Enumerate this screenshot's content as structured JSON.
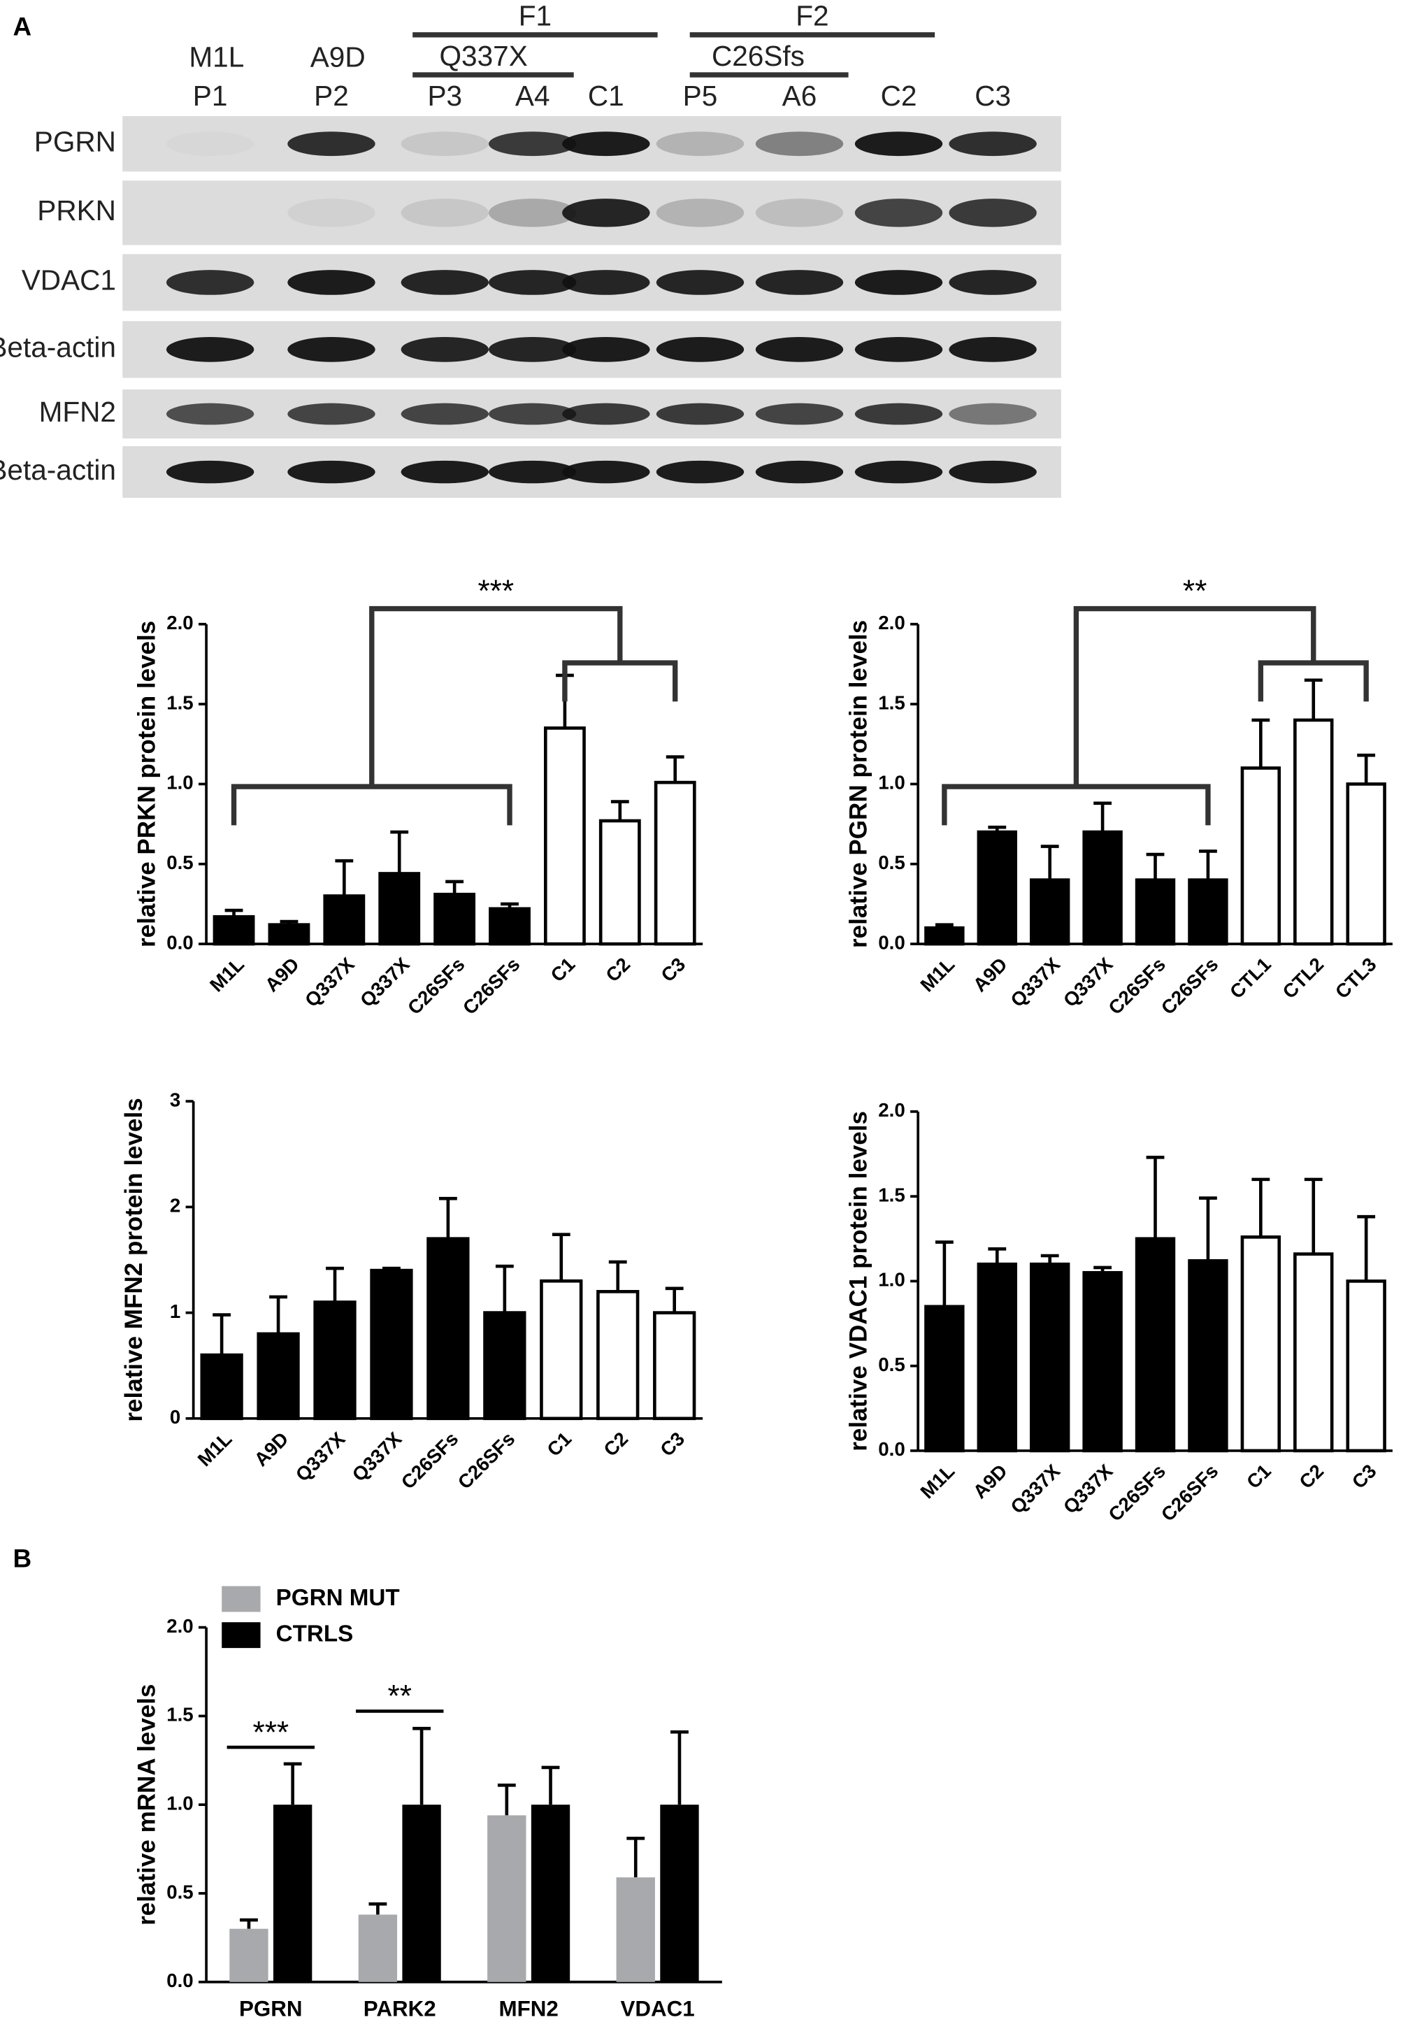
{
  "blot": {
    "panel": "A",
    "families": [
      {
        "label": "F1",
        "mutation": "Q337X"
      },
      {
        "label": "F2",
        "mutation": "C26Sfs"
      }
    ],
    "lanes_top": [
      "M1L",
      "A9D"
    ],
    "lanes": [
      "P1",
      "P2",
      "P3",
      "A4",
      "C1",
      "P5",
      "A6",
      "C2",
      "C3"
    ],
    "rows": [
      "PGRN",
      "PRKN",
      "VDAC1",
      "Beta-actin",
      "MFN2",
      "Beta-actin"
    ]
  },
  "chart_data": [
    {
      "type": "bar",
      "ylabel": "relative PRKN protein levels",
      "annotation": "***",
      "categories": [
        "M1L",
        "A9D",
        "Q337X",
        "Q337X",
        "C26SFs",
        "C26SFs",
        "C1",
        "C2",
        "C3"
      ],
      "series": [
        {
          "values": [
            0.17,
            0.12,
            0.3,
            0.44,
            0.31,
            0.22,
            1.35,
            0.77,
            1.01
          ],
          "errors": [
            0.04,
            0.02,
            0.22,
            0.26,
            0.08,
            0.03,
            0.33,
            0.12,
            0.16
          ],
          "colors": [
            "#000000",
            "#000000",
            "#000000",
            "#000000",
            "#000000",
            "#000000",
            "#ffffff",
            "#ffffff",
            "#ffffff"
          ]
        }
      ],
      "ylim": [
        0,
        2
      ],
      "yticks": [
        {
          "value": 0,
          "label": "0.0"
        },
        {
          "value": 0.5,
          "label": "0.5"
        },
        {
          "value": 1,
          "label": "1.0"
        },
        {
          "value": 1.5,
          "label": "1.5"
        },
        {
          "value": 2,
          "label": "2.0"
        }
      ]
    },
    {
      "type": "bar",
      "ylabel": "relative PGRN protein levels",
      "annotation": "**",
      "categories": [
        "M1L",
        "A9D",
        "Q337X",
        "Q337X",
        "C26SFs",
        "C26SFs",
        "CTL1",
        "CTL2",
        "CTL3"
      ],
      "series": [
        {
          "values": [
            0.1,
            0.7,
            0.4,
            0.7,
            0.4,
            0.4,
            1.1,
            1.4,
            1.0
          ],
          "errors": [
            0.02,
            0.03,
            0.21,
            0.18,
            0.16,
            0.18,
            0.3,
            0.25,
            0.18
          ],
          "colors": [
            "#000000",
            "#000000",
            "#000000",
            "#000000",
            "#000000",
            "#000000",
            "#ffffff",
            "#ffffff",
            "#ffffff"
          ]
        }
      ],
      "ylim": [
        0,
        2
      ],
      "yticks": [
        {
          "value": 0,
          "label": "0.0"
        },
        {
          "value": 0.5,
          "label": "0.5"
        },
        {
          "value": 1,
          "label": "1.0"
        },
        {
          "value": 1.5,
          "label": "1.5"
        },
        {
          "value": 2,
          "label": "2.0"
        }
      ]
    },
    {
      "type": "bar",
      "ylabel": "relative MFN2 protein levels",
      "categories": [
        "M1L",
        "A9D",
        "Q337X",
        "Q337X",
        "C26SFs",
        "C26SFs",
        "C1",
        "C2",
        "C3"
      ],
      "series": [
        {
          "values": [
            0.6,
            0.8,
            1.1,
            1.4,
            1.7,
            1.0,
            1.3,
            1.2,
            1.0
          ],
          "errors": [
            0.38,
            0.35,
            0.32,
            0.02,
            0.38,
            0.44,
            0.44,
            0.28,
            0.23
          ],
          "colors": [
            "#000000",
            "#000000",
            "#000000",
            "#000000",
            "#000000",
            "#000000",
            "#ffffff",
            "#ffffff",
            "#ffffff"
          ]
        }
      ],
      "ylim": [
        0,
        3
      ],
      "yticks": [
        0,
        1,
        2,
        3
      ]
    },
    {
      "type": "bar",
      "ylabel": "relative VDAC1 protein levels",
      "categories": [
        "M1L",
        "A9D",
        "Q337X",
        "Q337X",
        "C26SFs",
        "C26SFs",
        "C1",
        "C2",
        "C3"
      ],
      "series": [
        {
          "values": [
            0.85,
            1.1,
            1.1,
            1.05,
            1.25,
            1.12,
            1.26,
            1.16,
            1.0
          ],
          "errors": [
            0.38,
            0.09,
            0.05,
            0.03,
            0.48,
            0.37,
            0.34,
            0.44,
            0.38
          ],
          "colors": [
            "#000000",
            "#000000",
            "#000000",
            "#000000",
            "#000000",
            "#000000",
            "#ffffff",
            "#ffffff",
            "#ffffff"
          ]
        }
      ],
      "ylim": [
        0,
        2
      ],
      "yticks": [
        {
          "value": 0,
          "label": "0.0"
        },
        {
          "value": 0.5,
          "label": "0.5"
        },
        {
          "value": 1,
          "label": "1.0"
        },
        {
          "value": 1.5,
          "label": "1.5"
        },
        {
          "value": 2,
          "label": "2.0"
        }
      ]
    },
    {
      "type": "grouped_bar",
      "panel": "B",
      "ylabel": "relative mRNA levels",
      "annotations": [
        "***",
        "**"
      ],
      "categories": [
        "PGRN",
        "PARK2",
        "MFN2",
        "VDAC1"
      ],
      "series": [
        {
          "name": "PGRN MUT",
          "color": "#a7a9ac",
          "values": [
            0.3,
            0.38,
            0.94,
            0.59
          ],
          "errors": [
            0.05,
            0.06,
            0.17,
            0.22
          ]
        },
        {
          "name": "CTRLS",
          "color": "#000000",
          "values": [
            1.0,
            1.0,
            1.0,
            1.0
          ],
          "errors": [
            0.23,
            0.43,
            0.21,
            0.41
          ]
        }
      ],
      "ylim": [
        0,
        2
      ],
      "yticks": [
        {
          "value": 0,
          "label": "0.0"
        },
        {
          "value": 0.5,
          "label": "0.5"
        },
        {
          "value": 1,
          "label": "1.0"
        },
        {
          "value": 1.5,
          "label": "1.5"
        },
        {
          "value": 2,
          "label": "2.0"
        }
      ],
      "legend": "top-left"
    }
  ]
}
